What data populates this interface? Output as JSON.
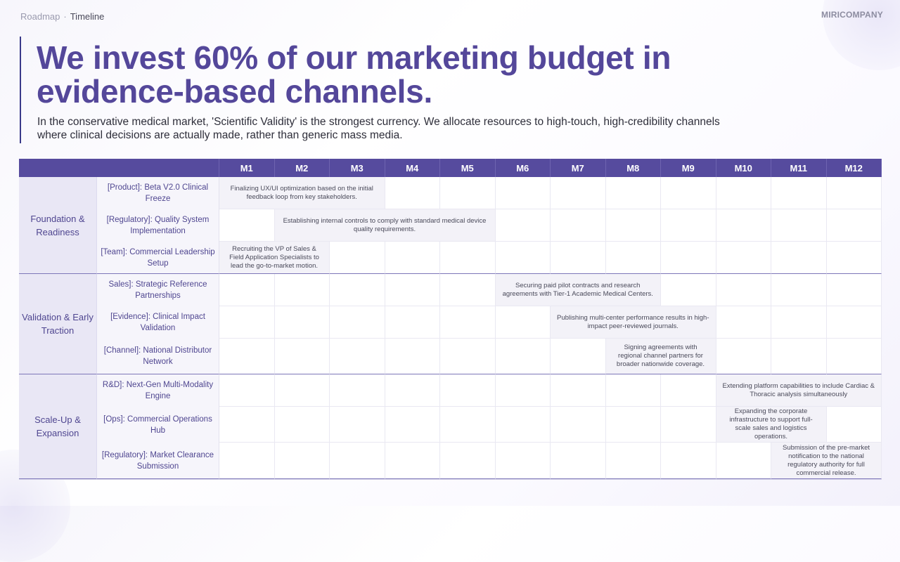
{
  "breadcrumb": {
    "parent": "Roadmap",
    "separator": "·",
    "current": "Timeline"
  },
  "brand": {
    "logo_text": "MIRICOMPANY"
  },
  "title": "We invest 60% of our marketing budget in evidence-based channels.",
  "subtitle": "In the conservative medical market, 'Scientific Validity' is the strongest currency. We allocate resources to high-touch, high-credibility channels where clinical decisions are actually made, rather than generic mass media.",
  "months": [
    "M1",
    "M2",
    "M3",
    "M4",
    "M5",
    "M6",
    "M7",
    "M8",
    "M9",
    "M10",
    "M11",
    "M12"
  ],
  "colors": {
    "header": "#564b9e",
    "title": "#54479a",
    "group_bg": "#e9e7f5",
    "bar_bg": "#f3f2f8"
  },
  "groups": [
    {
      "name": "Foundation & Readiness",
      "rows": [
        {
          "label": "[Product]: Beta V2.0 Clinical Freeze",
          "start": 1,
          "end": 3,
          "text": "Finalizing UX/UI optimization based on the initial feedback loop from key stakeholders."
        },
        {
          "label": "[Regulatory]: Quality System Implementation",
          "start": 2,
          "end": 5,
          "text": "Establishing internal controls to comply with standard medical device quality requirements."
        },
        {
          "label": "[Team]: Commercial Leadership Setup",
          "start": 1,
          "end": 2,
          "text": "Recruiting the VP of Sales & Field Application Specialists to lead the go-to-market motion."
        }
      ]
    },
    {
      "name": "Validation & Early Traction",
      "rows": [
        {
          "label": "Sales]: Strategic Reference Partnerships",
          "start": 6,
          "end": 8,
          "text": "Securing paid pilot contracts and research agreements with Tier-1 Academic Medical Centers."
        },
        {
          "label": "[Evidence]: Clinical Impact Validation",
          "start": 7,
          "end": 9,
          "text": "Publishing multi-center performance results in high-impact peer-reviewed journals."
        },
        {
          "label": "[Channel]: National Distributor Network",
          "start": 8,
          "end": 9,
          "text": "Signing agreements with regional channel partners for broader nationwide coverage."
        }
      ]
    },
    {
      "name": "Scale-Up & Expansion",
      "rows": [
        {
          "label": "R&D]: Next-Gen Multi-Modality Engine",
          "start": 10,
          "end": 12,
          "text": "Extending platform capabilities to include Cardiac & Thoracic analysis simultaneously"
        },
        {
          "label": "[Ops]: Commercial Operations Hub",
          "start": 10,
          "end": 11,
          "text": "Expanding the corporate infrastructure to support full-scale sales and logistics operations."
        },
        {
          "label": "[Regulatory]: Market Clearance Submission",
          "start": 11,
          "end": 12,
          "text": "Submission of the pre-market notification to the national regulatory authority for full commercial release."
        }
      ]
    }
  ]
}
